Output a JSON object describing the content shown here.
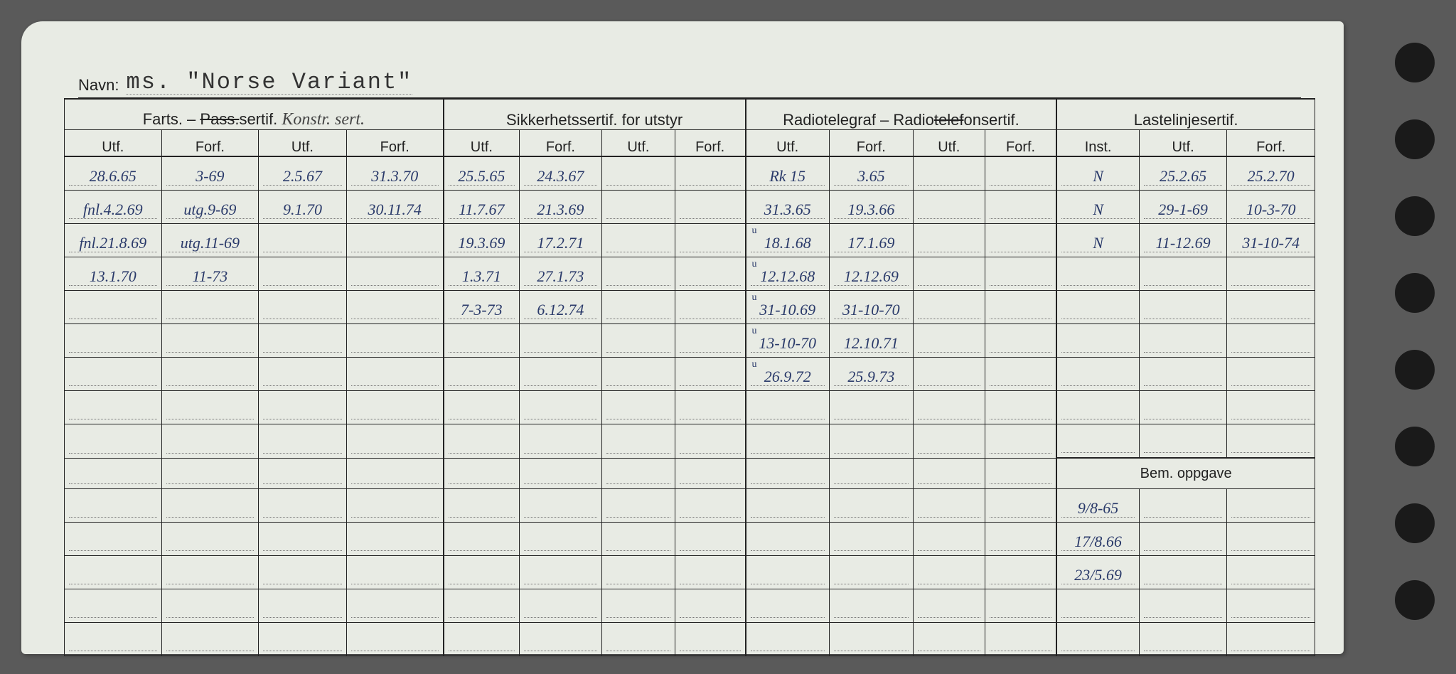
{
  "navn_label": "Navn:",
  "navn_value": "ms. \"Norse Variant\"",
  "headers": {
    "group1": "Farts. – ",
    "group1_strike": "Pass.",
    "group1_suffix": "sertif.",
    "group1_handwrite": "Konstr. sert.",
    "group2": "Sikkerhetssertif. for utstyr",
    "group3": "Radiotelegraf – Radiotelefonsertif.",
    "group3_strike": "telef",
    "group4": "Lastelinjesertif.",
    "cols": [
      "Utf.",
      "Forf.",
      "Utf.",
      "Forf.",
      "Utf.",
      "Forf.",
      "Utf.",
      "Forf.",
      "Utf.",
      "Forf.",
      "Utf.",
      "Forf.",
      "Inst.",
      "Utf.",
      "Forf."
    ],
    "bem": "Bem. oppgave"
  },
  "rows": [
    {
      "c1": "28.6.65",
      "c2": "3-69",
      "c3": "2.5.67",
      "c4": "31.3.70",
      "c5": "25.5.65",
      "c6": "24.3.67",
      "c7": "",
      "c8": "",
      "c9": "Rk 15",
      "c10": "3.65",
      "c11": "",
      "c12": "",
      "c13": "N",
      "c14": "25.2.65",
      "c15": "25.2.70"
    },
    {
      "c1": "fnl.4.2.69",
      "c2": "utg.9-69",
      "c3": "9.1.70",
      "c4": "30.11.74",
      "c5": "11.7.67",
      "c6": "21.3.69",
      "c7": "",
      "c8": "",
      "c9": "31.3.65",
      "c10": "19.3.66",
      "c11": "",
      "c12": "",
      "c13": "N",
      "c14": "29-1-69",
      "c15": "10-3-70"
    },
    {
      "c1": "fnl.21.8.69",
      "c2": "utg.11-69",
      "c3": "",
      "c4": "",
      "c5": "19.3.69",
      "c6": "17.2.71",
      "c7": "",
      "c8": "",
      "c9": "18.1.68",
      "c10": "17.1.69",
      "c11": "",
      "c12": "",
      "c13": "N",
      "c14": "11-12.69",
      "c15": "31-10-74",
      "u9": "u"
    },
    {
      "c1": "13.1.70",
      "c2": "11-73",
      "c3": "",
      "c4": "",
      "c5": "1.3.71",
      "c6": "27.1.73",
      "c7": "",
      "c8": "",
      "c9": "12.12.68",
      "c10": "12.12.69",
      "c11": "",
      "c12": "",
      "c13": "",
      "c14": "",
      "c15": "",
      "u9": "u"
    },
    {
      "c1": "",
      "c2": "",
      "c3": "",
      "c4": "",
      "c5": "7-3-73",
      "c6": "6.12.74",
      "c7": "",
      "c8": "",
      "c9": "31-10.69",
      "c10": "31-10-70",
      "c11": "",
      "c12": "",
      "c13": "",
      "c14": "",
      "c15": "",
      "u9": "u"
    },
    {
      "c1": "",
      "c2": "",
      "c3": "",
      "c4": "",
      "c5": "",
      "c6": "",
      "c7": "",
      "c8": "",
      "c9": "13-10-70",
      "c10": "12.10.71",
      "c11": "",
      "c12": "",
      "c13": "",
      "c14": "",
      "c15": "",
      "u9": "u"
    },
    {
      "c1": "",
      "c2": "",
      "c3": "",
      "c4": "",
      "c5": "",
      "c6": "",
      "c7": "",
      "c8": "",
      "c9": "26.9.72",
      "c10": "25.9.73",
      "c11": "",
      "c12": "",
      "c13": "",
      "c14": "",
      "c15": "",
      "u9": "u"
    },
    {
      "c1": "",
      "c2": "",
      "c3": "",
      "c4": "",
      "c5": "",
      "c6": "",
      "c7": "",
      "c8": "",
      "c9": "",
      "c10": "",
      "c11": "",
      "c12": "",
      "c13": "",
      "c14": "",
      "c15": ""
    },
    {
      "c1": "",
      "c2": "",
      "c3": "",
      "c4": "",
      "c5": "",
      "c6": "",
      "c7": "",
      "c8": "",
      "c9": "",
      "c10": "",
      "c11": "",
      "c12": "",
      "c13": "",
      "c14": "",
      "c15": ""
    }
  ],
  "bem_rows": [
    {
      "c13": "9/8-65",
      "c14": "",
      "c15": ""
    },
    {
      "c13": "17/8.66",
      "c14": "",
      "c15": ""
    },
    {
      "c13": "23/5.69",
      "c14": "",
      "c15": ""
    },
    {
      "c13": "",
      "c14": "",
      "c15": ""
    },
    {
      "c13": "",
      "c14": "",
      "c15": ""
    }
  ],
  "colors": {
    "card_bg": "#e8ebe4",
    "page_bg": "#5a5a5a",
    "line": "#222",
    "dotted": "#777",
    "ink": "#2a3a6a"
  }
}
